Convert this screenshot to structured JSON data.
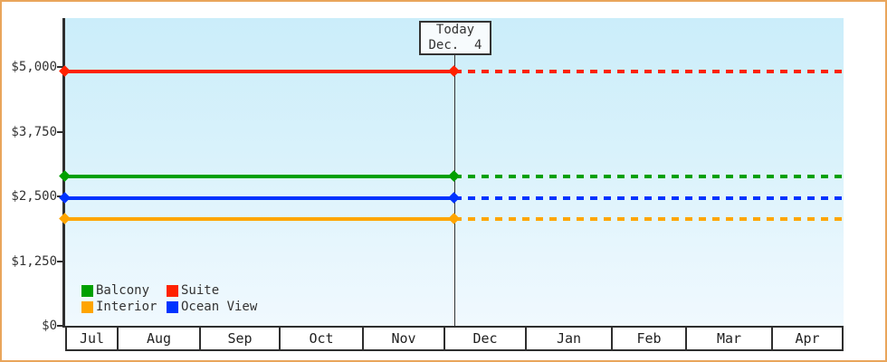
{
  "frame": {
    "border_color": "#e9a55b",
    "background_color": "#ffffff"
  },
  "chart_data": {
    "type": "line",
    "title": "",
    "description": "Price history by cabin category; solid lines before today, dotted projection after",
    "x_categories": [
      "Jul",
      "Aug",
      "Sep",
      "Oct",
      "Nov",
      "Dec",
      "Jan",
      "Feb",
      "Mar",
      "Apr"
    ],
    "ylim": [
      0,
      5000
    ],
    "y_ticks": [
      {
        "label": "$0",
        "value": 0
      },
      {
        "label": "$1,250",
        "value": 1250
      },
      {
        "label": "$2,500",
        "value": 2500
      },
      {
        "label": "$3,750",
        "value": 3750
      },
      {
        "label": "$5,000",
        "value": 5000
      }
    ],
    "today_marker": {
      "line1": "Today",
      "line2": "Dec.  4",
      "month": "Dec",
      "day": 4
    },
    "series": [
      {
        "name": "Balcony",
        "color": "#00a000",
        "value": 2880
      },
      {
        "name": "Suite",
        "color": "#ff2200",
        "value": 4910
      },
      {
        "name": "Interior",
        "color": "#ffa500",
        "value": 2060
      },
      {
        "name": "Ocean View",
        "color": "#0033ff",
        "value": 2460
      }
    ],
    "legend_position": "bottom-left",
    "grid": false,
    "plot_background_gradient": [
      "#cbedfa",
      "#f0f9fe"
    ]
  }
}
